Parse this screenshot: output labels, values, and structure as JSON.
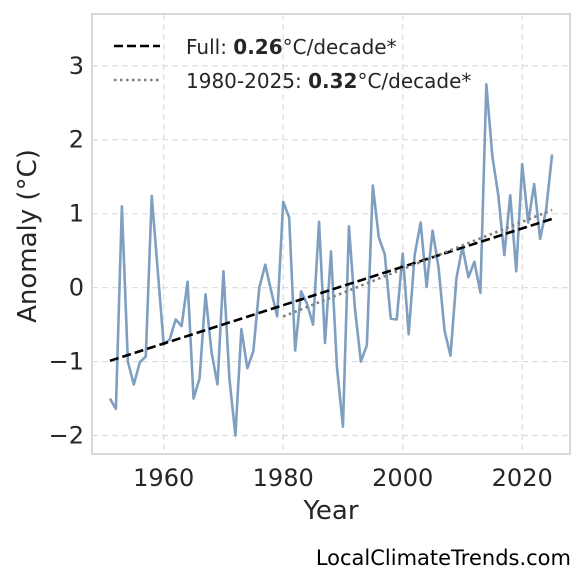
{
  "watermark": "LocalClimateTrends.com",
  "chart_data": {
    "type": "line",
    "xlabel": "Year",
    "ylabel": "Anomaly (°C)",
    "xlim": [
      1948,
      2028
    ],
    "ylim": [
      -2.25,
      3.7
    ],
    "x_ticks": [
      1960,
      1980,
      2000,
      2020
    ],
    "y_ticks": [
      -2,
      -1,
      0,
      1,
      2,
      3
    ],
    "y_tick_labels": [
      "−2",
      "−1",
      "0",
      "1",
      "2",
      "3"
    ],
    "grid": true,
    "legend_position": "top-left",
    "colors": {
      "series": "#7f9fc0",
      "full_trend": "#000000",
      "recent_trend": "#808080"
    },
    "series": [
      {
        "x": [
          1951,
          1952,
          1953,
          1954,
          1955,
          1956,
          1957,
          1958,
          1959,
          1960,
          1961,
          1962,
          1963,
          1964,
          1965,
          1966,
          1967,
          1968,
          1969,
          1970,
          1971,
          1972,
          1973,
          1974,
          1975,
          1976,
          1977,
          1978,
          1979,
          1980,
          1981,
          1982,
          1983,
          1984,
          1985,
          1986,
          1987,
          1988,
          1989,
          1990,
          1991,
          1992,
          1993,
          1994,
          1995,
          1996,
          1997,
          1998,
          1999,
          2000,
          2001,
          2002,
          2003,
          2004,
          2005,
          2006,
          2007,
          2008,
          2009,
          2010,
          2011,
          2012,
          2013,
          2014,
          2015,
          2016,
          2017,
          2018,
          2019,
          2020,
          2021,
          2022,
          2023,
          2024,
          2025
        ],
        "values": [
          -1.5,
          -1.64,
          1.1,
          -1.0,
          -1.31,
          -1.01,
          -0.93,
          1.24,
          0.23,
          -0.77,
          -0.7,
          -0.43,
          -0.52,
          0.08,
          -1.5,
          -1.23,
          -0.09,
          -0.87,
          -1.31,
          0.22,
          -1.23,
          -2.0,
          -0.56,
          -1.09,
          -0.86,
          0.0,
          0.31,
          -0.05,
          -0.39,
          1.16,
          0.95,
          -0.85,
          -0.05,
          -0.22,
          -0.5,
          0.89,
          -0.75,
          0.49,
          -1.08,
          -1.88,
          0.83,
          -0.28,
          -1.0,
          -0.78,
          1.38,
          0.68,
          0.45,
          -0.42,
          -0.43,
          0.46,
          -0.63,
          0.44,
          0.88,
          0.01,
          0.77,
          0.27,
          -0.58,
          -0.92,
          0.13,
          0.55,
          0.14,
          0.35,
          -0.07,
          2.75,
          1.78,
          1.25,
          0.44,
          1.25,
          0.22,
          1.67,
          0.88,
          1.4,
          0.66,
          1.05,
          1.8
        ]
      }
    ],
    "trend_lines": [
      {
        "style": "dashed",
        "x": [
          1951,
          2025
        ],
        "y": [
          -0.99,
          0.93
        ]
      },
      {
        "style": "dotted",
        "x": [
          1980,
          2025
        ],
        "y": [
          -0.39,
          1.05
        ]
      }
    ],
    "legend": [
      {
        "prefix": "Full: ",
        "value": "0.26",
        "suffix": "°C/decade*"
      },
      {
        "prefix": "1980-2025: ",
        "value": "0.32",
        "suffix": "°C/decade*"
      }
    ]
  }
}
